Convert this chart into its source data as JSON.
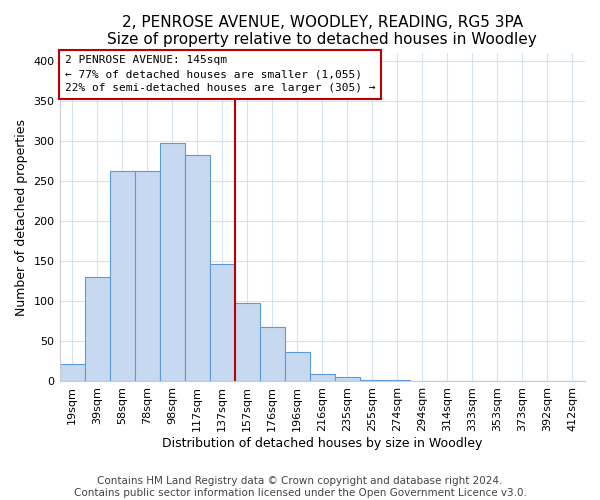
{
  "title": "2, PENROSE AVENUE, WOODLEY, READING, RG5 3PA",
  "subtitle": "Size of property relative to detached houses in Woodley",
  "xlabel": "Distribution of detached houses by size in Woodley",
  "ylabel": "Number of detached properties",
  "bar_labels": [
    "19sqm",
    "39sqm",
    "58sqm",
    "78sqm",
    "98sqm",
    "117sqm",
    "137sqm",
    "157sqm",
    "176sqm",
    "196sqm",
    "216sqm",
    "235sqm",
    "255sqm",
    "274sqm",
    "294sqm",
    "314sqm",
    "333sqm",
    "353sqm",
    "373sqm",
    "392sqm",
    "412sqm"
  ],
  "bar_values": [
    22,
    130,
    263,
    263,
    297,
    283,
    147,
    98,
    68,
    37,
    9,
    5,
    2,
    2,
    1,
    0,
    1,
    0,
    1,
    0,
    0
  ],
  "bar_color": "#c6d9f1",
  "bar_edge_color": "#5b9bd5",
  "bar_edge_width": 0.8,
  "marker_line_color": "#c00000",
  "marker_label": "2 PENROSE AVENUE: 145sqm",
  "annotation_smaller": "← 77% of detached houses are smaller (1,055)",
  "annotation_larger": "22% of semi-detached houses are larger (305) →",
  "annotation_box_color": "#ffffff",
  "annotation_box_edge": "#c00000",
  "ylim": [
    0,
    410
  ],
  "yticks": [
    0,
    50,
    100,
    150,
    200,
    250,
    300,
    350,
    400
  ],
  "grid_color": "#d5e3f0",
  "footnote1": "Contains HM Land Registry data © Crown copyright and database right 2024.",
  "footnote2": "Contains public sector information licensed under the Open Government Licence v3.0.",
  "title_fontsize": 11,
  "subtitle_fontsize": 10,
  "axis_label_fontsize": 9,
  "tick_fontsize": 8,
  "annotation_fontsize": 8,
  "footnote_fontsize": 7.5
}
